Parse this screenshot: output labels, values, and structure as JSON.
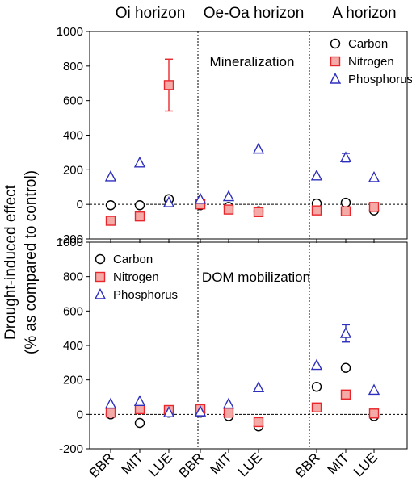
{
  "figure": {
    "ylabel_line1": "Drought-induced effect",
    "ylabel_line2": "(% as compared to control)",
    "horizons": [
      "Oi horizon",
      "Oe-Oa horizon",
      "A horizon"
    ],
    "sites": [
      "BBR",
      "MIT",
      "LUE"
    ]
  },
  "colors": {
    "carbon": "#000000",
    "nitrogen": "#e8262b",
    "phosphorus": "#2d2fbd"
  },
  "chart_data": [
    {
      "type": "scatter",
      "annotation": "Mineralization",
      "legend_placement": "top-right",
      "ylim": [
        -200,
        1000
      ],
      "yticks": [
        -200,
        0,
        200,
        400,
        600,
        800,
        1000
      ],
      "series": [
        {
          "name": "Carbon",
          "marker": "circle",
          "values": [
            -5,
            -5,
            30,
            -5,
            -15,
            -40,
            5,
            10,
            -35
          ],
          "err": [
            0,
            0,
            0,
            0,
            0,
            0,
            0,
            0,
            0
          ]
        },
        {
          "name": "Nitrogen",
          "marker": "square",
          "values": [
            -95,
            -70,
            690,
            0,
            -30,
            -45,
            -35,
            -40,
            -15
          ],
          "err": [
            0,
            0,
            150,
            0,
            0,
            0,
            0,
            0,
            0
          ]
        },
        {
          "name": "Phosphorus",
          "marker": "triangle",
          "values": [
            160,
            240,
            10,
            30,
            45,
            320,
            165,
            270,
            155
          ],
          "err": [
            0,
            0,
            0,
            0,
            0,
            0,
            0,
            25,
            0
          ]
        }
      ]
    },
    {
      "type": "scatter",
      "annotation": "DOM mobilization",
      "legend_placement": "top-left",
      "ylim": [
        -200,
        1000
      ],
      "yticks": [
        -200,
        0,
        200,
        400,
        600,
        800,
        1000
      ],
      "series": [
        {
          "name": "Carbon",
          "marker": "circle",
          "values": [
            0,
            -50,
            10,
            10,
            -10,
            -70,
            160,
            270,
            -10
          ],
          "err": [
            0,
            0,
            0,
            0,
            0,
            0,
            0,
            0,
            0
          ]
        },
        {
          "name": "Nitrogen",
          "marker": "square",
          "values": [
            10,
            30,
            25,
            30,
            10,
            -45,
            40,
            115,
            5
          ],
          "err": [
            0,
            0,
            0,
            0,
            0,
            0,
            0,
            0,
            0
          ]
        },
        {
          "name": "Phosphorus",
          "marker": "triangle",
          "values": [
            60,
            75,
            10,
            15,
            60,
            155,
            285,
            470,
            140
          ],
          "err": [
            0,
            0,
            0,
            0,
            0,
            0,
            0,
            50,
            0
          ]
        }
      ]
    }
  ]
}
